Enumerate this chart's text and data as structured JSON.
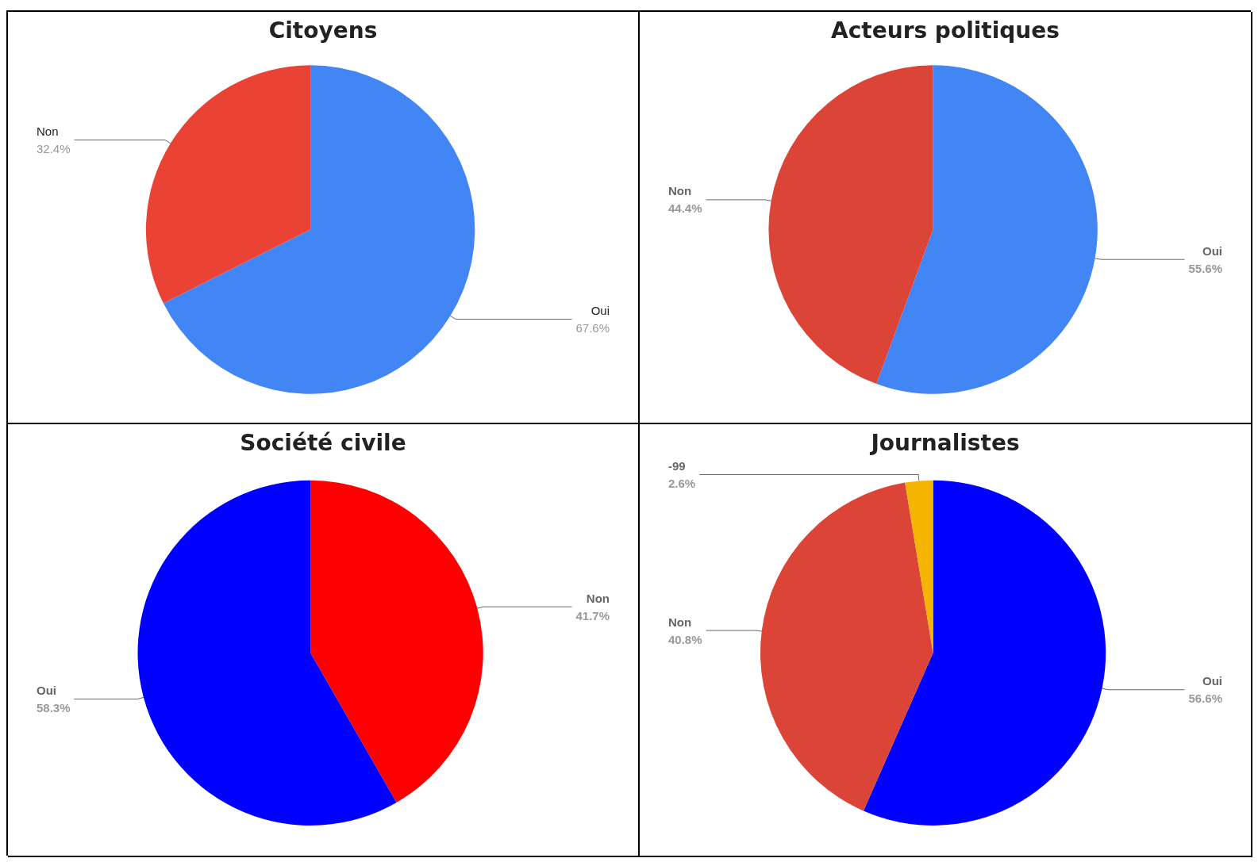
{
  "chart_data": [
    {
      "type": "pie",
      "title": "Citoyens",
      "categories": [
        "Oui",
        "Non"
      ],
      "values": [
        67.6,
        32.4
      ],
      "value_labels": [
        "67.6%",
        "32.4%"
      ],
      "colors": [
        "#4285f4",
        "#ea4335"
      ],
      "legend": false
    },
    {
      "type": "pie",
      "title": "Acteurs politiques",
      "categories": [
        "Oui",
        "Non"
      ],
      "values": [
        55.6,
        44.4
      ],
      "value_labels": [
        "55.6%",
        "44.4%"
      ],
      "colors": [
        "#4285f4",
        "#db4437"
      ],
      "legend": false
    },
    {
      "type": "pie",
      "title": "Société civile",
      "categories": [
        "Non",
        "Oui"
      ],
      "values": [
        41.7,
        58.3
      ],
      "value_labels": [
        "41.7%",
        "58.3%"
      ],
      "colors": [
        "#ff0000",
        "#0000ff"
      ],
      "legend": false
    },
    {
      "type": "pie",
      "title": "Journalistes",
      "categories": [
        "Oui",
        "Non",
        "-99"
      ],
      "values": [
        56.6,
        40.8,
        2.6
      ],
      "value_labels": [
        "56.6%",
        "40.8%",
        "2.6%"
      ],
      "colors": [
        "#0000ff",
        "#db4437",
        "#f4b400"
      ],
      "legend": false
    }
  ]
}
